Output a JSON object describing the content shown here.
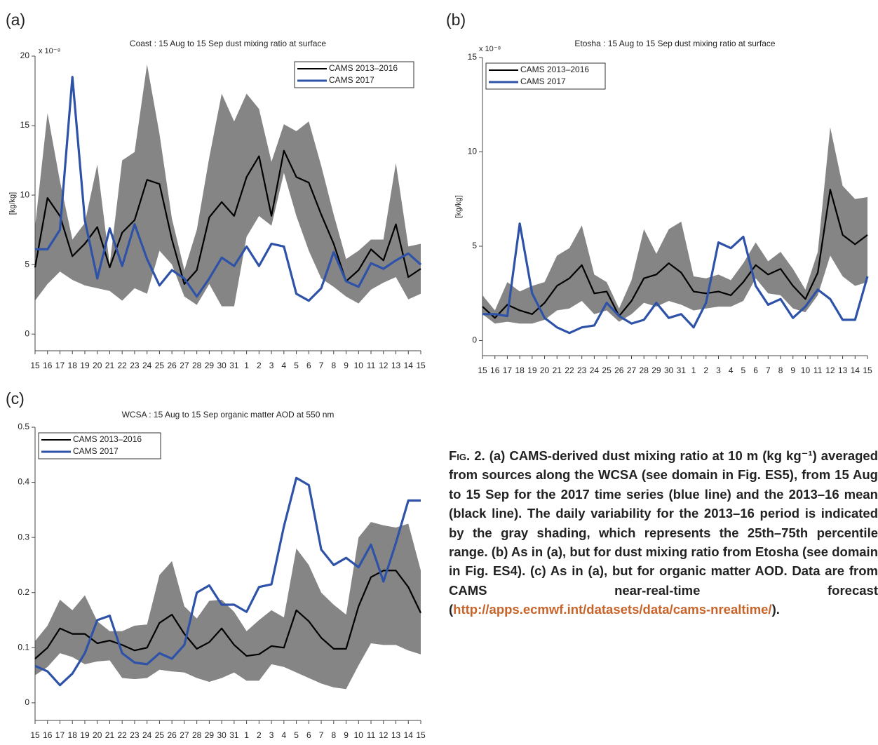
{
  "chart_data": [
    {
      "type": "line",
      "panel_label": "(a)",
      "title": "Coast : 15 Aug to 15 Sep dust mixing ratio at surface",
      "y_label": "[kg/kg]",
      "y_multiplier": "x 10⁻⁸",
      "categories": [
        "15",
        "16",
        "17",
        "18",
        "19",
        "20",
        "21",
        "22",
        "23",
        "24",
        "25",
        "26",
        "27",
        "28",
        "29",
        "30",
        "31",
        "1",
        "2",
        "3",
        "4",
        "5",
        "6",
        "7",
        "8",
        "9",
        "10",
        "11",
        "12",
        "13",
        "14",
        "15"
      ],
      "band": {
        "color": "#858585",
        "upper": [
          7.7,
          15.9,
          11.0,
          6.8,
          8.0,
          12.2,
          5.0,
          12.5,
          13.1,
          19.4,
          14.4,
          8.3,
          4.6,
          7.5,
          12.7,
          17.3,
          15.3,
          17.3,
          16.2,
          12.4,
          15.1,
          14.6,
          15.3,
          12.1,
          8.6,
          5.4,
          6.0,
          6.8,
          6.8,
          12.3,
          6.3,
          6.5
        ],
        "lower": [
          2.4,
          3.6,
          4.5,
          3.9,
          3.5,
          3.3,
          3.1,
          2.4,
          3.3,
          2.9,
          6.0,
          5.0,
          2.7,
          2.1,
          3.6,
          2.0,
          2.0,
          7.0,
          8.5,
          7.8,
          11.6,
          8.5,
          6.0,
          4.0,
          3.4,
          2.7,
          2.2,
          3.2,
          3.7,
          4.1,
          2.5,
          2.9
        ]
      },
      "series": [
        {
          "name": "CAMS 2013–2016",
          "color": "#000000",
          "values": [
            4.8,
            9.8,
            8.5,
            5.6,
            6.5,
            7.7,
            4.8,
            7.3,
            8.2,
            11.1,
            10.8,
            6.8,
            3.6,
            4.6,
            8.4,
            9.5,
            8.5,
            11.3,
            12.8,
            8.5,
            13.2,
            11.3,
            10.9,
            8.6,
            6.5,
            3.8,
            4.6,
            6.1,
            5.3,
            7.9,
            4.1,
            4.7
          ]
        },
        {
          "name": "CAMS 2017",
          "color": "#2d52a8",
          "values": [
            6.1,
            6.1,
            7.5,
            18.5,
            8.2,
            4.0,
            7.6,
            4.9,
            7.9,
            5.4,
            3.5,
            4.6,
            4.0,
            2.7,
            4.0,
            5.5,
            4.9,
            6.3,
            4.9,
            6.5,
            6.3,
            2.9,
            2.4,
            3.3,
            5.9,
            3.8,
            3.4,
            5.1,
            4.7,
            5.3,
            5.8,
            5.0
          ]
        }
      ],
      "ylim": [
        -1.2,
        20
      ],
      "yticks": [
        0,
        5,
        10,
        15,
        20
      ],
      "legend": "upper right"
    },
    {
      "type": "line",
      "panel_label": "(b)",
      "title": "Etosha : 15 Aug to 15 Sep dust mixing ratio at surface",
      "y_label": "[kg/kg]",
      "y_multiplier": "x 10⁻⁸",
      "categories": [
        "15",
        "16",
        "17",
        "18",
        "19",
        "20",
        "21",
        "22",
        "23",
        "24",
        "25",
        "26",
        "27",
        "28",
        "29",
        "30",
        "31",
        "1",
        "2",
        "3",
        "4",
        "5",
        "6",
        "7",
        "8",
        "9",
        "10",
        "11",
        "12",
        "13",
        "14",
        "15"
      ],
      "band": {
        "color": "#858585",
        "upper": [
          2.4,
          1.6,
          3.1,
          2.6,
          2.9,
          3.1,
          4.5,
          4.9,
          6.1,
          3.5,
          3.1,
          1.7,
          3.2,
          5.9,
          4.6,
          5.9,
          6.3,
          3.4,
          3.3,
          3.5,
          3.2,
          4.1,
          5.2,
          4.2,
          4.7,
          3.8,
          2.7,
          4.7,
          11.3,
          8.2,
          7.5,
          7.6
        ],
        "lower": [
          1.4,
          0.9,
          1.0,
          0.9,
          0.9,
          1.1,
          1.6,
          1.7,
          2.1,
          1.4,
          1.6,
          1.0,
          1.4,
          2.0,
          1.8,
          2.1,
          1.9,
          1.6,
          1.7,
          1.8,
          1.8,
          2.1,
          3.3,
          2.5,
          2.4,
          1.7,
          1.5,
          2.4,
          4.5,
          3.4,
          2.9,
          3.1
        ]
      },
      "series": [
        {
          "name": "CAMS 2013–2016",
          "color": "#000000",
          "values": [
            1.8,
            1.2,
            1.9,
            1.6,
            1.4,
            2.0,
            2.9,
            3.3,
            4.0,
            2.5,
            2.6,
            1.3,
            2.1,
            3.3,
            3.5,
            4.1,
            3.6,
            2.6,
            2.5,
            2.6,
            2.4,
            3.1,
            4.0,
            3.5,
            3.8,
            2.9,
            2.2,
            3.6,
            8.0,
            5.6,
            5.1,
            5.6
          ]
        },
        {
          "name": "CAMS 2017",
          "color": "#2d52a8",
          "values": [
            1.4,
            1.4,
            1.3,
            6.2,
            2.5,
            1.2,
            0.7,
            0.4,
            0.7,
            0.8,
            2.0,
            1.3,
            0.9,
            1.1,
            2.0,
            1.2,
            1.4,
            0.7,
            2.0,
            5.2,
            4.9,
            5.5,
            2.9,
            1.9,
            2.2,
            1.2,
            1.8,
            2.7,
            2.2,
            1.1,
            1.1,
            3.4
          ]
        }
      ],
      "ylim": [
        -0.8,
        15
      ],
      "yticks": [
        0,
        5,
        10,
        15
      ],
      "legend": "upper left"
    },
    {
      "type": "line",
      "panel_label": "(c)",
      "title": "WCSA : 15 Aug to 15 Sep organic matter AOD at 550 nm",
      "categories": [
        "15",
        "16",
        "17",
        "18",
        "19",
        "20",
        "21",
        "22",
        "23",
        "24",
        "25",
        "26",
        "27",
        "28",
        "29",
        "30",
        "31",
        "1",
        "2",
        "3",
        "4",
        "5",
        "6",
        "7",
        "8",
        "9",
        "10",
        "11",
        "12",
        "13",
        "14",
        "15"
      ],
      "band": {
        "color": "#858585",
        "upper": [
          0.112,
          0.14,
          0.187,
          0.168,
          0.195,
          0.148,
          0.13,
          0.13,
          0.14,
          0.142,
          0.232,
          0.257,
          0.175,
          0.153,
          0.185,
          0.187,
          0.165,
          0.13,
          0.15,
          0.168,
          0.155,
          0.28,
          0.25,
          0.2,
          0.178,
          0.16,
          0.3,
          0.328,
          0.322,
          0.318,
          0.325,
          0.24
        ],
        "lower": [
          0.05,
          0.065,
          0.09,
          0.083,
          0.07,
          0.075,
          0.077,
          0.045,
          0.043,
          0.045,
          0.06,
          0.057,
          0.055,
          0.045,
          0.038,
          0.045,
          0.055,
          0.04,
          0.04,
          0.07,
          0.065,
          0.055,
          0.045,
          0.035,
          0.028,
          0.025,
          0.068,
          0.108,
          0.105,
          0.105,
          0.095,
          0.088
        ]
      },
      "series": [
        {
          "name": "CAMS 2013–2016",
          "color": "#000000",
          "values": [
            0.08,
            0.1,
            0.135,
            0.125,
            0.125,
            0.108,
            0.113,
            0.105,
            0.095,
            0.1,
            0.145,
            0.16,
            0.125,
            0.098,
            0.11,
            0.135,
            0.105,
            0.085,
            0.088,
            0.103,
            0.1,
            0.168,
            0.148,
            0.118,
            0.098,
            0.098,
            0.175,
            0.228,
            0.24,
            0.24,
            0.21,
            0.163
          ]
        },
        {
          "name": "CAMS 2017",
          "color": "#2d52a8",
          "values": [
            0.067,
            0.057,
            0.032,
            0.053,
            0.09,
            0.15,
            0.158,
            0.09,
            0.073,
            0.07,
            0.09,
            0.08,
            0.105,
            0.2,
            0.213,
            0.178,
            0.178,
            0.165,
            0.21,
            0.215,
            0.32,
            0.408,
            0.395,
            0.278,
            0.25,
            0.263,
            0.246,
            0.287,
            0.22,
            0.29,
            0.367,
            0.367
          ]
        }
      ],
      "ylim": [
        -0.032,
        0.5
      ],
      "yticks": [
        0,
        0.1,
        0.2,
        0.3,
        0.4,
        0.5
      ],
      "legend": "upper left"
    }
  ],
  "caption": {
    "label": "Fig. 2.",
    "text": "(a) CAMS-derived dust mixing ratio at 10 m (kg kg⁻¹) averaged from sources along the WCSA (see domain in Fig. ES5), from 15 Aug to 15 Sep for the 2017 time series (blue line) and the 2013–16 mean (black line). The daily variability for the 2013–16 period is indicated by the gray shading, which represents the 25th–75th percentile range. (b) As in (a), but for dust mixing ratio from Etosha (see domain in Fig. ES4). (c) As in (a), but for organic matter AOD. Data are from CAMS near-real-time forecast (",
    "link": "http://apps.ecmwf.int/datasets/data/cams-nrealtime/",
    "end": ")."
  }
}
